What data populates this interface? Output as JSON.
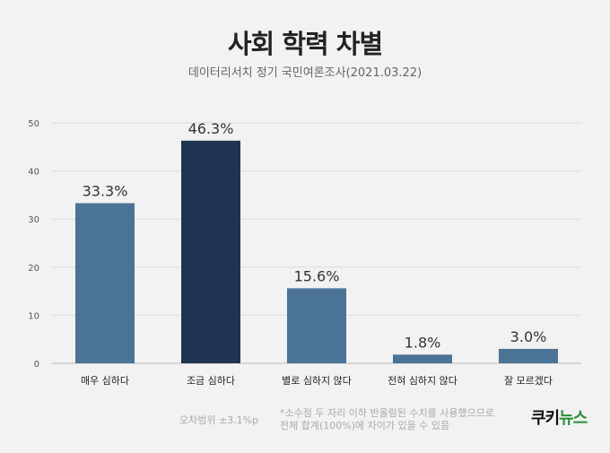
{
  "header": {
    "title": "사회 학력 차별",
    "subtitle": "데이터리서치 정기 국민여론조사(2021.03.22)"
  },
  "chart_data": {
    "type": "bar",
    "title": "사회 학력 차별",
    "subtitle": "데이터리서치 정기 국민여론조사(2021.03.22)",
    "categories": [
      "매우 심하다",
      "조금 심하다",
      "별로 심하지 않다",
      "전혀 심하지 않다",
      "잘 모르겠다"
    ],
    "values": [
      33.3,
      46.3,
      15.6,
      1.8,
      3.0
    ],
    "data_labels": [
      "33.3%",
      "46.3%",
      "15.6%",
      "1.8%",
      "3.0%"
    ],
    "colors": [
      "#4a7396",
      "#1f3452",
      "#4a7396",
      "#4a7396",
      "#4a7396"
    ],
    "ylim": [
      0,
      50
    ],
    "yticks": [
      0,
      10,
      20,
      30,
      40,
      50
    ],
    "grid": true,
    "xlabel": "",
    "ylabel": ""
  },
  "footer": {
    "margin_of_error": "오차범위 ±3.1%p",
    "note_line1": "*소수점 두 자리 이하 반올림된 수치를 사용했으므로",
    "note_line2": "전체 합계(100%)에 차이가 있을 수 있음",
    "logo_part1": "쿠키",
    "logo_part2": "뉴스"
  }
}
